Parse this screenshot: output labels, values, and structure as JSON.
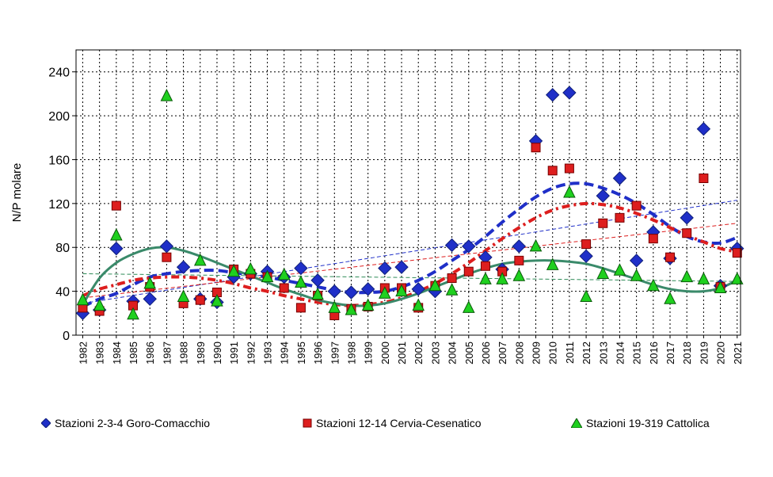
{
  "chart_data": {
    "type": "scatter",
    "ylabel": "N/P molare",
    "xlabel": "",
    "ylim": [
      0,
      260
    ],
    "yticks": [
      0,
      40,
      80,
      120,
      160,
      200,
      240
    ],
    "grid": true,
    "legend_position": "bottom",
    "categories": [
      "1982",
      "1983",
      "1984",
      "1985",
      "1986",
      "1987",
      "1988",
      "1989",
      "1990",
      "1991",
      "1992",
      "1993",
      "1994",
      "1995",
      "1996",
      "1997",
      "1998",
      "1999",
      "2000",
      "2001",
      "2002",
      "2003",
      "2004",
      "2005",
      "2006",
      "2007",
      "2008",
      "2009",
      "2010",
      "2011",
      "2012",
      "2013",
      "2014",
      "2015",
      "2016",
      "2017",
      "2018",
      "2019",
      "2020",
      "2021"
    ],
    "series": [
      {
        "name": "Stazioni 2-3-4 Goro-Comacchio",
        "marker": "diamond",
        "color": "#1f2fc8",
        "values": [
          20,
          23,
          79,
          31,
          33,
          81,
          62,
          33,
          30,
          53,
          56,
          58,
          53,
          61,
          50,
          40,
          39,
          42,
          61,
          62,
          42,
          40,
          82,
          81,
          71,
          60,
          81,
          177,
          219,
          221,
          72,
          127,
          143,
          68,
          94,
          70,
          107,
          188,
          45,
          79
        ],
        "trend_values": [
          26,
          33,
          38,
          46,
          53,
          56,
          58,
          59,
          59,
          57,
          55,
          53,
          50,
          47,
          44,
          41,
          39,
          39,
          40,
          44,
          50,
          58,
          68,
          78,
          90,
          103,
          115,
          126,
          134,
          138,
          138,
          134,
          128,
          120,
          110,
          99,
          90,
          85,
          84,
          89
        ]
      },
      {
        "name": "Stazioni 12-14 Cervia-Cesenatico",
        "marker": "square",
        "color": "#dd1e1e",
        "values": [
          25,
          22,
          118,
          27,
          44,
          71,
          29,
          32,
          39,
          60,
          56,
          53,
          43,
          25,
          36,
          18,
          24,
          26,
          43,
          43,
          25,
          45,
          52,
          58,
          63,
          58,
          68,
          171,
          150,
          152,
          83,
          102,
          107,
          118,
          88,
          71,
          93,
          143,
          44,
          75
        ],
        "trend_values": [
          36,
          42,
          46,
          50,
          52,
          53,
          53,
          52,
          50,
          47,
          43,
          40,
          36,
          33,
          30,
          28,
          27,
          28,
          30,
          34,
          40,
          47,
          56,
          66,
          77,
          88,
          98,
          107,
          114,
          118,
          120,
          119,
          116,
          111,
          105,
          98,
          91,
          85,
          79,
          76
        ]
      },
      {
        "name": "Stazioni 19-319 Cattolica",
        "marker": "triangle",
        "color": "#1fd01f",
        "values": [
          32,
          27,
          91,
          19,
          47,
          218,
          35,
          68,
          31,
          58,
          60,
          53,
          55,
          48,
          37,
          25,
          23,
          27,
          38,
          40,
          27,
          45,
          41,
          25,
          51,
          51,
          54,
          81,
          64,
          130,
          35,
          56,
          59,
          54,
          45,
          33,
          53,
          51,
          43,
          51
        ],
        "trend_values": [
          28,
          52,
          66,
          74,
          79,
          80,
          77,
          72,
          66,
          60,
          54,
          48,
          42,
          37,
          32,
          29,
          27,
          27,
          29,
          33,
          38,
          44,
          50,
          56,
          61,
          65,
          67,
          68,
          68,
          67,
          65,
          61,
          56,
          51,
          46,
          42,
          40,
          40,
          43,
          50
        ]
      }
    ],
    "linear_trends": [
      {
        "series": "Stazioni 2-3-4 Goro-Comacchio",
        "color": "#1f2fc8",
        "start": 29,
        "end": 123
      },
      {
        "series": "Stazioni 12-14 Cervia-Cesenatico",
        "color": "#dd1e1e",
        "start": 34,
        "end": 102
      },
      {
        "series": "Stazioni 19-319 Cattolica",
        "color": "#2e8b57",
        "start": 56,
        "end": 49
      }
    ]
  }
}
